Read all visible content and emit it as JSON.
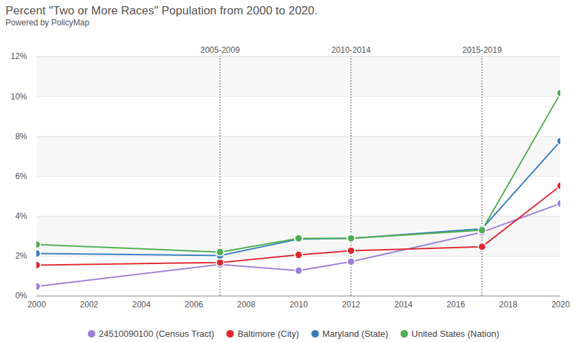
{
  "chart_data": {
    "type": "line",
    "title": "Percent \"Two or More Races\" Population from 2000 to 2020.",
    "subtitle": "Powered by PolicyMap",
    "x": [
      2000,
      2007,
      2010,
      2012,
      2017,
      2020
    ],
    "series": [
      {
        "name": "24510090100 (Census Tract)",
        "color": "#9d7fdb",
        "values": [
          0.48,
          1.58,
          1.27,
          1.72,
          3.2,
          4.64
        ]
      },
      {
        "name": "Baltimore (City)",
        "color": "#e0282e",
        "values": [
          1.55,
          1.68,
          2.06,
          2.27,
          2.47,
          5.53
        ]
      },
      {
        "name": "Maryland (State)",
        "color": "#3a7dbf",
        "values": [
          2.13,
          2.03,
          2.85,
          2.89,
          3.37,
          7.77
        ]
      },
      {
        "name": "United States (Nation)",
        "color": "#4caf50",
        "values": [
          2.58,
          2.2,
          2.89,
          2.89,
          3.3,
          10.17
        ]
      }
    ],
    "xlim": [
      2000,
      2020
    ],
    "xticks": [
      2000,
      2002,
      2004,
      2006,
      2008,
      2010,
      2012,
      2014,
      2016,
      2018,
      2020
    ],
    "ylim": [
      0,
      12
    ],
    "yticks": [
      {
        "value": 0,
        "label": "0%"
      },
      {
        "value": 2,
        "label": "2%"
      },
      {
        "value": 4,
        "label": "4%"
      },
      {
        "value": 6,
        "label": "6%"
      },
      {
        "value": 8,
        "label": "8%"
      },
      {
        "value": 10,
        "label": "10%"
      },
      {
        "value": 12,
        "label": "12%"
      }
    ],
    "annotations": [
      {
        "x": 2007,
        "label": "2005-2009"
      },
      {
        "x": 2012,
        "label": "2010-2014"
      },
      {
        "x": 2017,
        "label": "2015-2019"
      }
    ],
    "grid": true,
    "marker": "circle",
    "legend": "bottom"
  }
}
